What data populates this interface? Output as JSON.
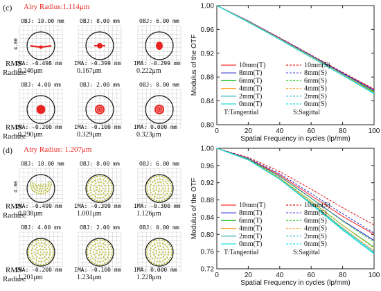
{
  "colors": {
    "airy_label": "#e8231f",
    "spot_red": "#e8231f",
    "spot_yellow": "#b6b823",
    "circle": "#111111",
    "grid": "#c8c8c8"
  },
  "panels": [
    {
      "letter": "(c)",
      "airy": "Airy Radius:1.114μm",
      "spot_style": "red",
      "rms_label": "RMS",
      "radius_label": "Radius:",
      "spots": [
        {
          "obj": "OBJ: 10.00 mm",
          "ima": "IMA: -0.498 mm",
          "rms": "0.246μm",
          "shape": "wide"
        },
        {
          "obj": "OBJ: 8.00 mm",
          "ima": "IMA: -0.399 mm",
          "rms": "0.167μm",
          "shape": "cross"
        },
        {
          "obj": "OBJ: 6.00 mm",
          "ima": "IMA: -0.299 mm",
          "rms": "0.222μm",
          "shape": "oval"
        },
        {
          "obj": "OBJ: 4.00 mm",
          "ima": "IMA: -0.200 mm",
          "rms": "0.290μm",
          "shape": "round"
        },
        {
          "obj": "OBJ: 2.00 mm",
          "ima": "IMA: -0.100 mm",
          "rms": "0.329μm",
          "shape": "ring"
        },
        {
          "obj": "OBJ: 0.00 mm",
          "ima": "IMA: 0.000 mm",
          "rms": "0.323μm",
          "shape": "ring"
        }
      ],
      "scale_label": "4.00"
    },
    {
      "letter": "(d)",
      "airy": "Airy Radius: 1.207μm",
      "spot_style": "yellow",
      "rms_label": "RMS",
      "radius_label": "Radius:",
      "spots": [
        {
          "obj": "OBJ: 10.00 mm",
          "ima": "IMA: -0.499 mm",
          "rms": "0.838μm",
          "shape": "half"
        },
        {
          "obj": "OBJ: 8.00 mm",
          "ima": "IMA: -0.399 mm",
          "rms": "1.001μm",
          "shape": "full"
        },
        {
          "obj": "OBJ: 6.00 mm",
          "ima": "IMA: -0.300 mm",
          "rms": "1.126μm",
          "shape": "full"
        },
        {
          "obj": "OBJ: 4.00 mm",
          "ima": "IMA: -0.200 mm",
          "rms": "1.201μm",
          "shape": "full"
        },
        {
          "obj": "OBJ: 2.00 mm",
          "ima": "IMA: -0.100 mm",
          "rms": "1.234μm",
          "shape": "full"
        },
        {
          "obj": "OBJ: 0.00 mm",
          "ima": "IMA: 0.000 mm",
          "rms": "1.228μm",
          "shape": "full"
        }
      ],
      "scale_label": "4.00"
    }
  ],
  "chart_data": [
    {
      "type": "line",
      "xlabel": "Spatial Frequency in cycles (lp/mm)",
      "ylabel": "Modulus of the OTF",
      "xlim": [
        0,
        100
      ],
      "ylim": [
        0.8,
        1.0
      ],
      "xticks": [
        0,
        20,
        40,
        60,
        80,
        100
      ],
      "yticks": [
        0.8,
        0.84,
        0.88,
        0.92,
        0.96,
        1.0
      ],
      "ytick_labels": [
        "0.80",
        "0.84",
        "0.88",
        "0.92",
        "0.96",
        "1.00"
      ],
      "legend_position": "bottom-left",
      "legend_note_left": "T:Tangential",
      "legend_note_right": "S:Sagittal",
      "series": [
        {
          "name": "10mm(T)",
          "color": "#ff2a2a",
          "dash": false,
          "x": [
            0,
            20,
            40,
            60,
            80,
            100
          ],
          "values": [
            1.0,
            0.974,
            0.945,
            0.916,
            0.887,
            0.859
          ]
        },
        {
          "name": "10mm(S)",
          "color": "#e41a1c",
          "dash": true,
          "x": [
            0,
            20,
            40,
            60,
            80,
            100
          ],
          "values": [
            1.0,
            0.974,
            0.946,
            0.917,
            0.888,
            0.86
          ]
        },
        {
          "name": "8mm(T)",
          "color": "#2222cc",
          "dash": false,
          "x": [
            0,
            20,
            40,
            60,
            80,
            100
          ],
          "values": [
            1.0,
            0.974,
            0.945,
            0.916,
            0.886,
            0.857
          ]
        },
        {
          "name": "8mm(S)",
          "color": "#3a3ad9",
          "dash": true,
          "x": [
            0,
            20,
            40,
            60,
            80,
            100
          ],
          "values": [
            1.0,
            0.974,
            0.945,
            0.916,
            0.887,
            0.858
          ]
        },
        {
          "name": "6mm(T)",
          "color": "#1fc01f",
          "dash": false,
          "x": [
            0,
            20,
            40,
            60,
            80,
            100
          ],
          "values": [
            1.0,
            0.973,
            0.944,
            0.914,
            0.884,
            0.855
          ]
        },
        {
          "name": "6mm(S)",
          "color": "#39d339",
          "dash": true,
          "x": [
            0,
            20,
            40,
            60,
            80,
            100
          ],
          "values": [
            1.0,
            0.973,
            0.944,
            0.915,
            0.885,
            0.856
          ]
        },
        {
          "name": "4mm(T)",
          "color": "#ff9a1a",
          "dash": false,
          "x": [
            0,
            20,
            40,
            60,
            80,
            100
          ],
          "values": [
            1.0,
            0.973,
            0.944,
            0.914,
            0.884,
            0.854
          ]
        },
        {
          "name": "4mm(S)",
          "color": "#ffa733",
          "dash": true,
          "x": [
            0,
            20,
            40,
            60,
            80,
            100
          ],
          "values": [
            1.0,
            0.973,
            0.944,
            0.914,
            0.884,
            0.854
          ]
        },
        {
          "name": "2mm(T)",
          "color": "#29a9a9",
          "dash": false,
          "x": [
            0,
            20,
            40,
            60,
            80,
            100
          ],
          "values": [
            1.0,
            0.972,
            0.943,
            0.913,
            0.883,
            0.853
          ]
        },
        {
          "name": "2mm(S)",
          "color": "#33b7b7",
          "dash": true,
          "x": [
            0,
            20,
            40,
            60,
            80,
            100
          ],
          "values": [
            1.0,
            0.972,
            0.943,
            0.913,
            0.883,
            0.853
          ]
        },
        {
          "name": "0mm(T)",
          "color": "#1ee0e0",
          "dash": false,
          "x": [
            0,
            20,
            40,
            60,
            80,
            100
          ],
          "values": [
            1.0,
            0.972,
            0.943,
            0.913,
            0.883,
            0.852
          ]
        },
        {
          "name": "0mm(S)",
          "color": "#22e7e7",
          "dash": true,
          "x": [
            0,
            20,
            40,
            60,
            80,
            100
          ],
          "values": [
            1.0,
            0.972,
            0.943,
            0.913,
            0.883,
            0.852
          ]
        }
      ]
    },
    {
      "type": "line",
      "xlabel": "Spatial Frequency in cycles (lp/mm)",
      "ylabel": "Modulus of the OTF",
      "xlim": [
        0,
        100
      ],
      "ylim": [
        0.72,
        1.0
      ],
      "xticks": [
        0,
        20,
        40,
        60,
        80,
        100
      ],
      "yticks": [
        0.72,
        0.76,
        0.8,
        0.84,
        0.88,
        0.92,
        0.96,
        1.0
      ],
      "ytick_labels": [
        "0.72",
        "0.76",
        "0.80",
        "0.84",
        "0.88",
        "0.92",
        "0.96",
        "1.00"
      ],
      "legend_position": "bottom-left",
      "legend_note_left": "T:Tangential",
      "legend_note_right": "S:Sagittal",
      "series": [
        {
          "name": "10mm(T)",
          "color": "#ff2a2a",
          "dash": false,
          "x": [
            0,
            20,
            40,
            60,
            80,
            100
          ],
          "values": [
            1.0,
            0.976,
            0.938,
            0.89,
            0.842,
            0.8
          ]
        },
        {
          "name": "10mm(S)",
          "color": "#e41a1c",
          "dash": true,
          "x": [
            0,
            20,
            40,
            60,
            80,
            100
          ],
          "values": [
            1.0,
            0.979,
            0.946,
            0.905,
            0.862,
            0.822
          ]
        },
        {
          "name": "8mm(T)",
          "color": "#2222cc",
          "dash": false,
          "x": [
            0,
            20,
            40,
            60,
            80,
            100
          ],
          "values": [
            1.0,
            0.975,
            0.935,
            0.884,
            0.832,
            0.786
          ]
        },
        {
          "name": "8mm(S)",
          "color": "#3a3ad9",
          "dash": true,
          "x": [
            0,
            20,
            40,
            60,
            80,
            100
          ],
          "values": [
            1.0,
            0.977,
            0.941,
            0.895,
            0.848,
            0.803
          ]
        },
        {
          "name": "6mm(T)",
          "color": "#1fc01f",
          "dash": false,
          "x": [
            0,
            20,
            40,
            60,
            80,
            100
          ],
          "values": [
            1.0,
            0.974,
            0.931,
            0.877,
            0.821,
            0.77
          ]
        },
        {
          "name": "6mm(S)",
          "color": "#39d339",
          "dash": true,
          "x": [
            0,
            20,
            40,
            60,
            80,
            100
          ],
          "values": [
            1.0,
            0.975,
            0.935,
            0.884,
            0.831,
            0.782
          ]
        },
        {
          "name": "4mm(T)",
          "color": "#ff9a1a",
          "dash": false,
          "x": [
            0,
            20,
            40,
            60,
            80,
            100
          ],
          "values": [
            1.0,
            0.973,
            0.929,
            0.873,
            0.815,
            0.761
          ]
        },
        {
          "name": "4mm(S)",
          "color": "#ffa733",
          "dash": true,
          "x": [
            0,
            20,
            40,
            60,
            80,
            100
          ],
          "values": [
            1.0,
            0.974,
            0.931,
            0.877,
            0.821,
            0.768
          ]
        },
        {
          "name": "2mm(T)",
          "color": "#29a9a9",
          "dash": false,
          "x": [
            0,
            20,
            40,
            60,
            80,
            100
          ],
          "values": [
            1.0,
            0.973,
            0.928,
            0.871,
            0.812,
            0.757
          ]
        },
        {
          "name": "2mm(S)",
          "color": "#33b7b7",
          "dash": true,
          "x": [
            0,
            20,
            40,
            60,
            80,
            100
          ],
          "values": [
            1.0,
            0.973,
            0.929,
            0.873,
            0.815,
            0.761
          ]
        },
        {
          "name": "0mm(T)",
          "color": "#1ee0e0",
          "dash": false,
          "x": [
            0,
            20,
            40,
            60,
            80,
            100
          ],
          "values": [
            1.0,
            0.973,
            0.928,
            0.87,
            0.81,
            0.755
          ]
        },
        {
          "name": "0mm(S)",
          "color": "#22e7e7",
          "dash": true,
          "x": [
            0,
            20,
            40,
            60,
            80,
            100
          ],
          "values": [
            1.0,
            0.973,
            0.928,
            0.871,
            0.812,
            0.757
          ]
        }
      ]
    }
  ]
}
